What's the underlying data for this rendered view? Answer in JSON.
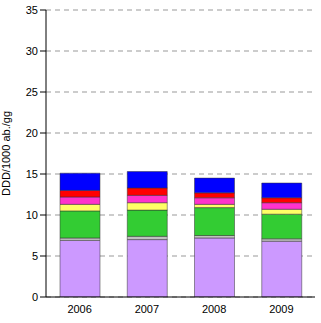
{
  "chart_data": {
    "type": "bar",
    "stacked": true,
    "grid": true,
    "y_label": "DDD/1000 ab./gg",
    "categories": [
      "2006",
      "2007",
      "2008",
      "2009"
    ],
    "ylim": [
      0,
      35
    ],
    "yticks": [
      0,
      5,
      10,
      15,
      20,
      25,
      30,
      35
    ],
    "series": [
      {
        "color": "#cc99ff",
        "values": [
          6.9,
          7.0,
          7.2,
          6.8
        ]
      },
      {
        "color": "#c0c0c0",
        "values": [
          0.3,
          0.4,
          0.3,
          0.3
        ]
      },
      {
        "color": "#33cc33",
        "values": [
          3.3,
          3.2,
          3.4,
          3.0
        ]
      },
      {
        "color": "#ffff66",
        "values": [
          0.8,
          0.9,
          0.4,
          0.6
        ]
      },
      {
        "color": "#ff33cc",
        "values": [
          0.9,
          0.9,
          0.8,
          0.8
        ]
      },
      {
        "color": "#ff0000",
        "values": [
          0.8,
          0.9,
          0.6,
          0.6
        ]
      },
      {
        "color": "#0000ff",
        "values": [
          2.1,
          2.0,
          1.8,
          1.8
        ]
      }
    ]
  }
}
